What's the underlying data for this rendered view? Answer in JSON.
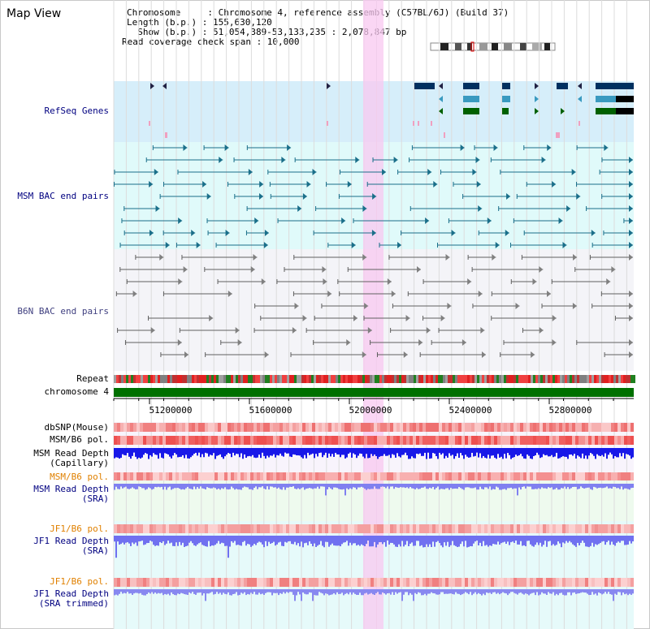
{
  "page_title": "Map View",
  "info": {
    "chromosome_line": "Chromosome     : Chromosome 4, reference assembly (C57BL/6J) (Build 37)",
    "length_line": "Length (b.p.) : 155,630,120",
    "show_line": "  Show (b.p.) : 51,054,389-53,133,235 : 2,078,847 bp",
    "coverage_line": "Read coverage check span : 10,000"
  },
  "tracks": {
    "refseq": "RefSeq Genes",
    "msm_bac": "MSM BAC end pairs",
    "b6n_bac": "B6N BAC end pairs",
    "repeat": "Repeat",
    "chromosome": "chromosome 4",
    "dbsnp": "dbSNP(Mouse)",
    "msm_b6_pol_1": "MSM/B6 pol.",
    "msm_read_depth_cap_1": "MSM Read Depth",
    "msm_read_depth_cap_2": "(Capillary)",
    "msm_b6_pol_2": "MSM/B6 pol.",
    "msm_read_depth_sra_1": "MSM Read Depth",
    "msm_read_depth_sra_2": "(SRA)",
    "jf1_b6_pol_1": "JF1/B6 pol.",
    "jf1_read_depth_1": "JF1 Read Depth",
    "jf1_read_depth_2": "(SRA)",
    "jf1_b6_pol_2": "JF1/B6 pol.",
    "jf1_read_depth_trim_1": "JF1 Read Depth",
    "jf1_read_depth_trim_2": "(SRA trimmed)"
  },
  "axis_ticks": [
    "51200000",
    "51600000",
    "52000000",
    "52400000",
    "52800000"
  ],
  "colors": {
    "refseq_bg": "#d6eefa",
    "msm_bg": "#e0fafa",
    "b6n_bg": "#f4f4f8",
    "highlight": "#f8c8f0",
    "chrom_green": "#007000",
    "label_navy": "#000080",
    "label_orange": "#e08000",
    "depth_blue": "#2020e0"
  }
}
